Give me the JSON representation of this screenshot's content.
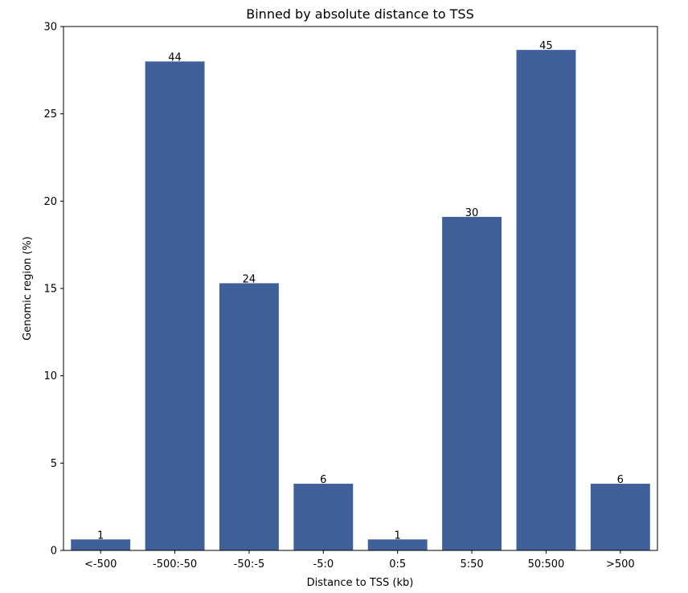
{
  "chart_data": {
    "type": "bar",
    "title": "Binned by absolute distance to TSS",
    "xlabel": "Distance to TSS (kb)",
    "ylabel": "Genomic region (%)",
    "categories": [
      "<-500",
      "-500:-50",
      "-50:-5",
      "-5:0",
      "0:5",
      "5:50",
      "50:500",
      ">500"
    ],
    "values": [
      0.63,
      28.0,
      15.3,
      3.82,
      0.63,
      19.1,
      28.66,
      3.82
    ],
    "data_labels": [
      "1",
      "44",
      "24",
      "6",
      "1",
      "30",
      "45",
      "6"
    ],
    "ylim": [
      0,
      30
    ],
    "yticks": [
      0,
      5,
      10,
      15,
      20,
      25,
      30
    ],
    "grid": false,
    "bar_color": "#40609a"
  }
}
